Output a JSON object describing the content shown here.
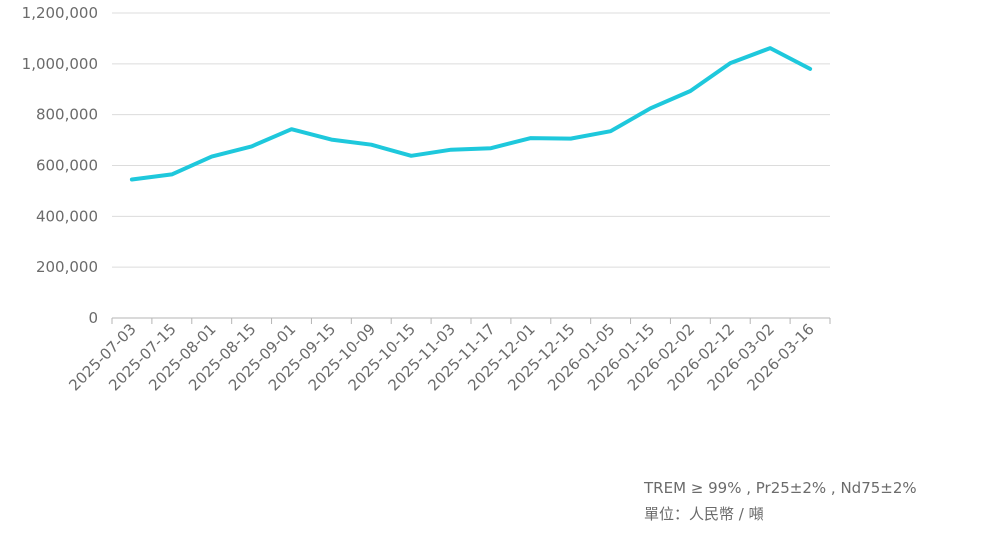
{
  "chart_data": {
    "type": "line",
    "categories": [
      "2025-07-03",
      "2025-07-15",
      "2025-08-01",
      "2025-08-15",
      "2025-09-01",
      "2025-09-15",
      "2025-10-09",
      "2025-10-15",
      "2025-11-03",
      "2025-11-17",
      "2025-12-01",
      "2025-12-15",
      "2026-01-05",
      "2026-01-15",
      "2026-02-02",
      "2026-02-12",
      "2026-03-02",
      "2026-03-16"
    ],
    "series": [
      {
        "values": [
          545000,
          565000,
          635000,
          675000,
          743000,
          702000,
          682000,
          638000,
          662000,
          668000,
          708000,
          706000,
          735000,
          825000,
          893000,
          1003000,
          1062000,
          980000
        ]
      }
    ],
    "ylim": [
      0,
      1200000
    ],
    "yticks": [
      0,
      200000,
      400000,
      600000,
      800000,
      1000000,
      1200000
    ],
    "ytick_labels": [
      "0",
      "200,000",
      "400,000",
      "600,000",
      "800,000",
      "1,000,000",
      "1,200,000"
    ],
    "grid": true,
    "line_color": "#1ec8dc",
    "grid_color": "#dcdcdc"
  },
  "notes": {
    "spec": "TREM ≥ 99% , Pr25±2% , Nd75±2%",
    "unit": "單位：人民幣 / 噸"
  }
}
